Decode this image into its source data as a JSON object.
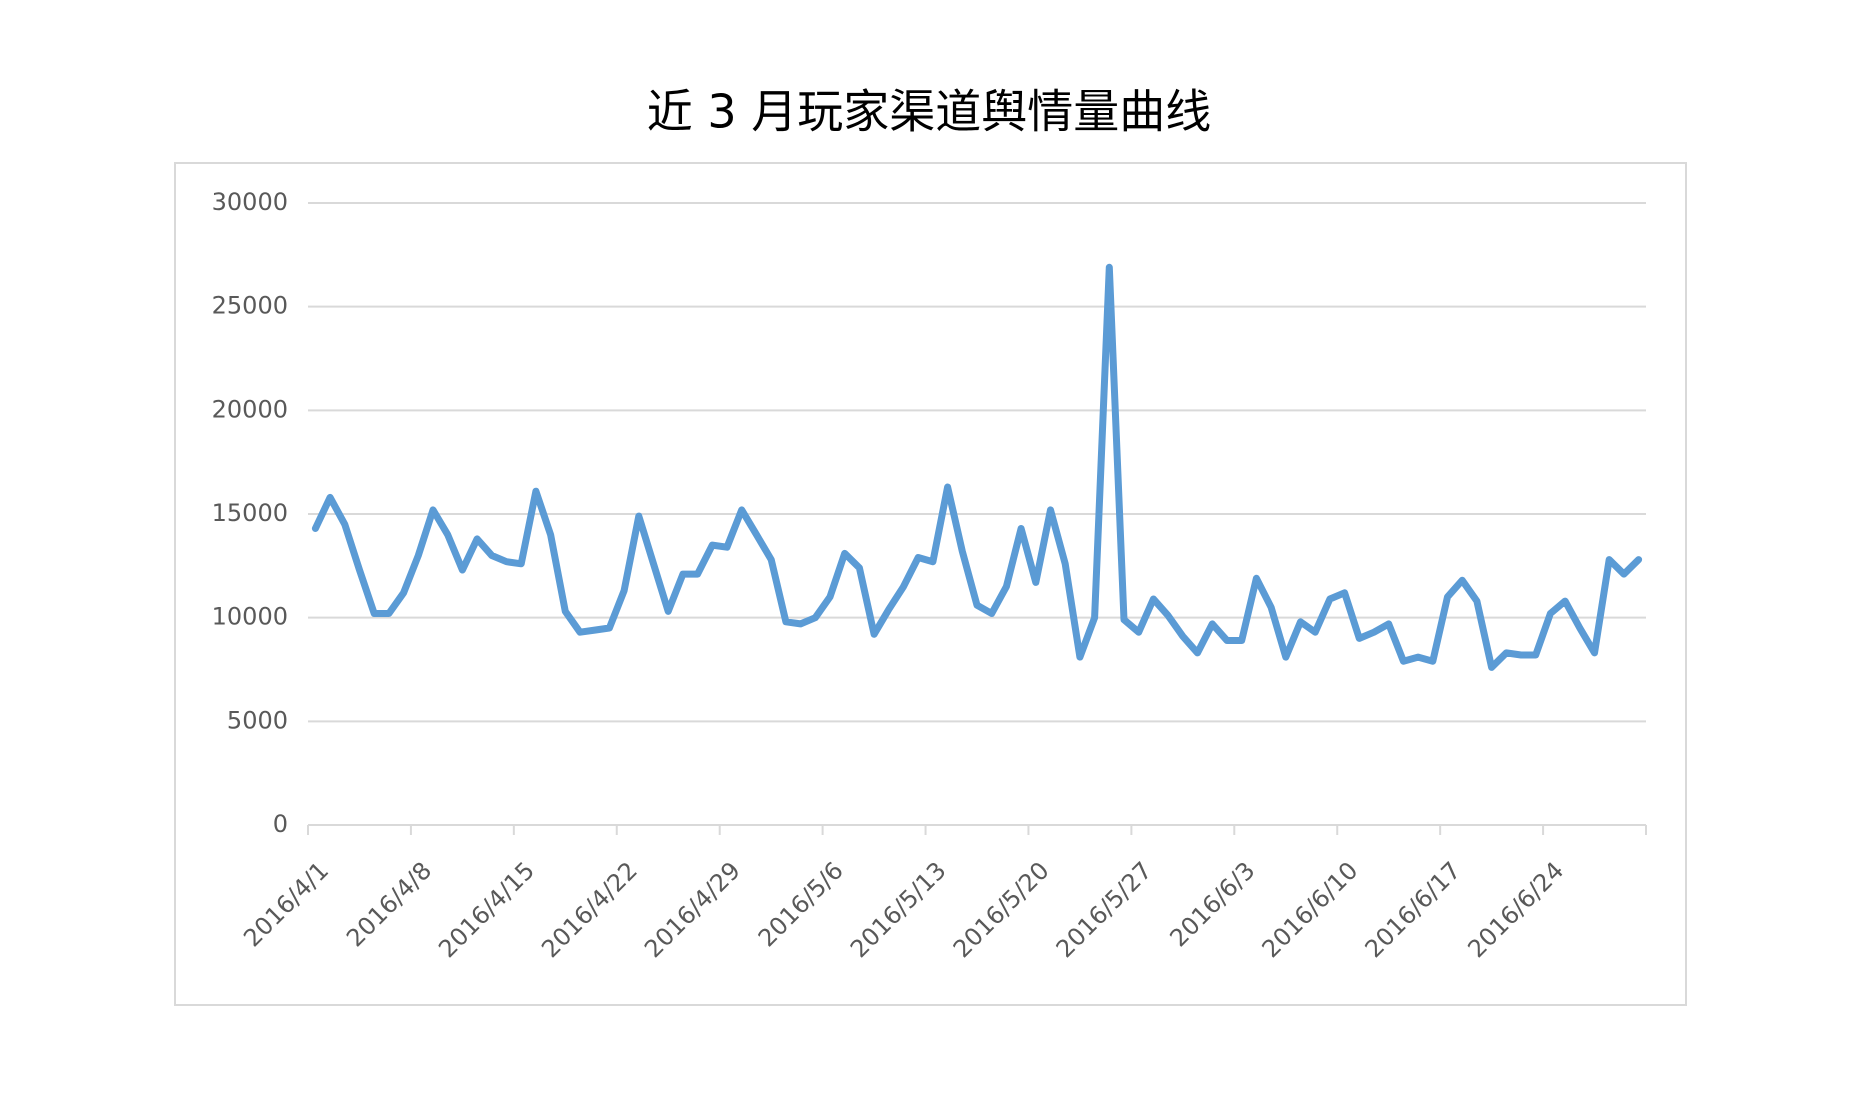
{
  "chart_data": {
    "type": "line",
    "title": "近 3 月玩家渠道舆情量曲线",
    "categories": [
      "2016/4/1",
      null,
      null,
      null,
      null,
      null,
      null,
      "2016/4/8",
      null,
      null,
      null,
      null,
      null,
      null,
      "2016/4/15",
      null,
      null,
      null,
      null,
      null,
      null,
      "2016/4/22",
      null,
      null,
      null,
      null,
      null,
      null,
      "2016/4/29",
      null,
      null,
      null,
      null,
      null,
      null,
      "2016/5/6",
      null,
      null,
      null,
      null,
      null,
      null,
      "2016/5/13",
      null,
      null,
      null,
      null,
      null,
      null,
      "2016/5/20",
      null,
      null,
      null,
      null,
      null,
      null,
      "2016/5/27",
      null,
      null,
      null,
      null,
      null,
      null,
      "2016/6/3",
      null,
      null,
      null,
      null,
      null,
      null,
      "2016/6/10",
      null,
      null,
      null,
      null,
      null,
      null,
      "2016/6/17",
      null,
      null,
      null,
      null,
      null,
      null,
      "2016/6/24",
      null,
      null,
      null,
      null,
      null,
      null
    ],
    "values": [
      14300,
      15800,
      14500,
      12300,
      10200,
      10200,
      11200,
      13000,
      15200,
      14000,
      12300,
      13800,
      13000,
      12700,
      12600,
      16100,
      14000,
      10300,
      9300,
      9400,
      9500,
      11300,
      14900,
      12600,
      10300,
      12100,
      12100,
      13500,
      13400,
      15200,
      14000,
      12800,
      9800,
      9700,
      10000,
      11000,
      13100,
      12400,
      9200,
      10400,
      11500,
      12900,
      12700,
      16300,
      13200,
      10600,
      10200,
      11500,
      14300,
      11700,
      15200,
      12600,
      8100,
      10000,
      26900,
      9900,
      9300,
      10900,
      10100,
      9100,
      8300,
      9700,
      8900,
      8900,
      11900,
      10500,
      8100,
      9800,
      9300,
      10900,
      11200,
      9000,
      9300,
      9700,
      7900,
      8100,
      7900,
      11000,
      11800,
      10800,
      7600,
      8300,
      8200,
      8200,
      10200,
      10800,
      9500,
      8300,
      12800,
      12100,
      12800
    ],
    "color": "#5b9bd5",
    "ylim": [
      0,
      30000
    ],
    "yticks": [
      0,
      5000,
      10000,
      15000,
      20000,
      25000,
      30000
    ],
    "grid": true
  }
}
